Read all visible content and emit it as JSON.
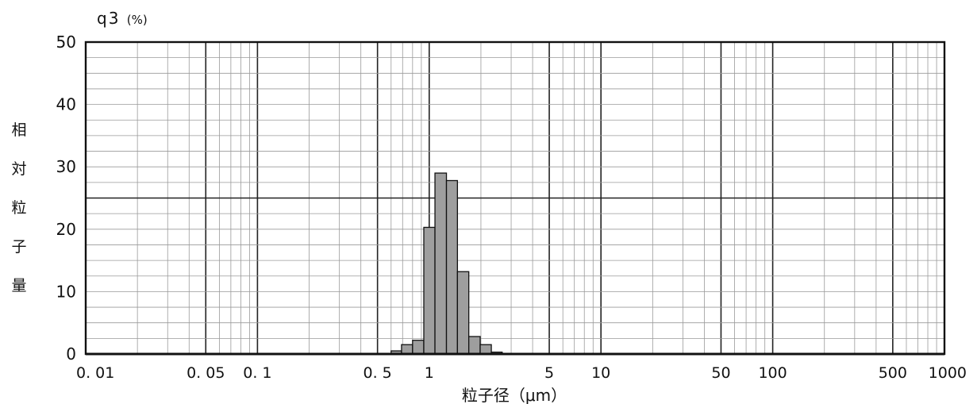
{
  "chart_data": {
    "type": "bar",
    "x_scale": "log",
    "xlabel": "粒子径（μm）",
    "ylabel": "相対粒子量",
    "y_unit_label": "q3",
    "y_unit_pct": "(%)",
    "xlim": [
      0.01,
      1000
    ],
    "ylim": [
      0,
      50
    ],
    "yticks": [
      0,
      10,
      20,
      30,
      40,
      50
    ],
    "xticks": [
      {
        "value": 0.01,
        "label": "0. 01"
      },
      {
        "value": 0.05,
        "label": "0. 05"
      },
      {
        "value": 0.1,
        "label": "0. 1"
      },
      {
        "value": 0.5,
        "label": "0. 5"
      },
      {
        "value": 1,
        "label": "1"
      },
      {
        "value": 5,
        "label": "5"
      },
      {
        "value": 10,
        "label": "10"
      },
      {
        "value": 50,
        "label": "50"
      },
      {
        "value": 100,
        "label": "100"
      },
      {
        "value": 500,
        "label": "500"
      },
      {
        "value": 1000,
        "label": "1000"
      }
    ],
    "reference_line_y": 25,
    "grid": true,
    "bar_color": "#9e9e9e",
    "bars": [
      {
        "from": 0.6,
        "to": 0.69,
        "value": 0.5
      },
      {
        "from": 0.69,
        "to": 0.8,
        "value": 1.5
      },
      {
        "from": 0.8,
        "to": 0.93,
        "value": 2.2
      },
      {
        "from": 0.93,
        "to": 1.08,
        "value": 20.3
      },
      {
        "from": 1.08,
        "to": 1.26,
        "value": 29.0
      },
      {
        "from": 1.26,
        "to": 1.46,
        "value": 27.8
      },
      {
        "from": 1.46,
        "to": 1.7,
        "value": 13.2
      },
      {
        "from": 1.7,
        "to": 1.98,
        "value": 2.8
      },
      {
        "from": 1.98,
        "to": 2.3,
        "value": 1.5
      },
      {
        "from": 2.3,
        "to": 2.66,
        "value": 0.3
      }
    ]
  }
}
